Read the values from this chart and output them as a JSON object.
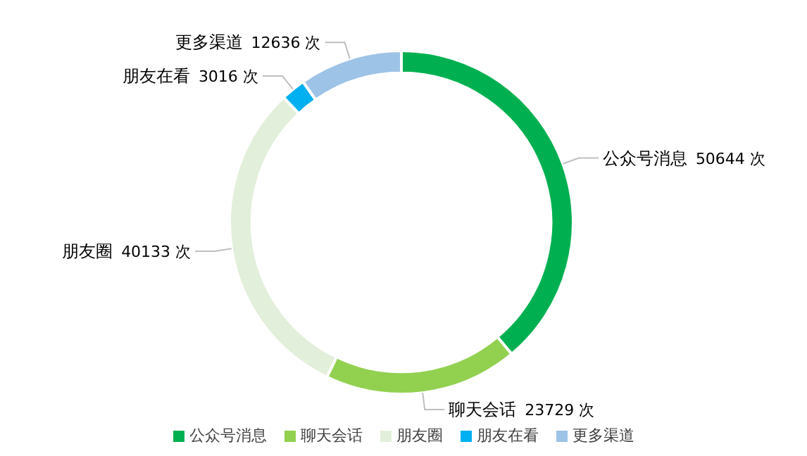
{
  "chart_data": {
    "type": "donut",
    "categories": [
      "公众号消息",
      "聊天会话",
      "朋友圈",
      "朋友在看",
      "更多渠道"
    ],
    "values": [
      50644,
      23729,
      40133,
      3016,
      12636
    ],
    "colors": [
      "#00b050",
      "#92d050",
      "#e2efda",
      "#00b0f0",
      "#9dc3e6"
    ],
    "value_labels": [
      "50644 次",
      "23729 次",
      "40133 次",
      "3016 次",
      "12636 次"
    ],
    "legend": "bottom"
  }
}
